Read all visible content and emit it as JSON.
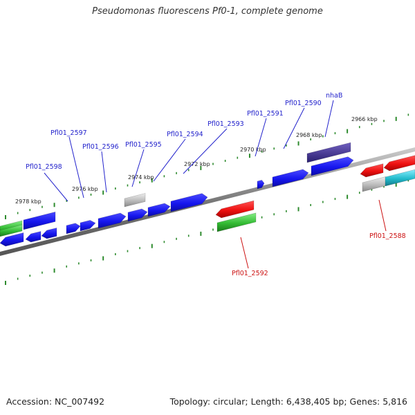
{
  "title": "Pseudomonas fluorescens Pf0-1, complete genome",
  "footer": {
    "accession": "Accession: NC_007492",
    "topology": "Topology: circular; Length: 6,438,405 bp; Genes: 5,816"
  },
  "colors": {
    "backbone": "#888888",
    "tick_green": "#2e8b2e",
    "blue_gene": "#1a1aee",
    "blue_label": "#2222cc",
    "red_label": "#cc1111",
    "red_gene": "#ee1111",
    "green_gene": "#33bb33",
    "purple_gene": "#4a3c94",
    "gray_gene": "#bbbbbb",
    "cyan_gene": "#22bbcc"
  },
  "scale_labels": [
    "2978 kbp",
    "2976 kbp",
    "2974 kbp",
    "2972 kbp",
    "2970 kbp",
    "2968 kbp",
    "2966 kbp"
  ],
  "gene_labels": [
    {
      "text": "Pfl01_2598",
      "strand": "forward"
    },
    {
      "text": "Pfl01_2597",
      "strand": "forward"
    },
    {
      "text": "Pfl01_2596",
      "strand": "forward"
    },
    {
      "text": "Pfl01_2595",
      "strand": "forward"
    },
    {
      "text": "Pfl01_2594",
      "strand": "forward"
    },
    {
      "text": "Pfl01_2593",
      "strand": "forward"
    },
    {
      "text": "Pfl01_2591",
      "strand": "forward"
    },
    {
      "text": "Pfl01_2590",
      "strand": "forward"
    },
    {
      "text": "nhaB",
      "strand": "forward"
    },
    {
      "text": "Pfl01_2592",
      "strand": "reverse"
    },
    {
      "text": "Pfl01_2588",
      "strand": "reverse"
    }
  ]
}
